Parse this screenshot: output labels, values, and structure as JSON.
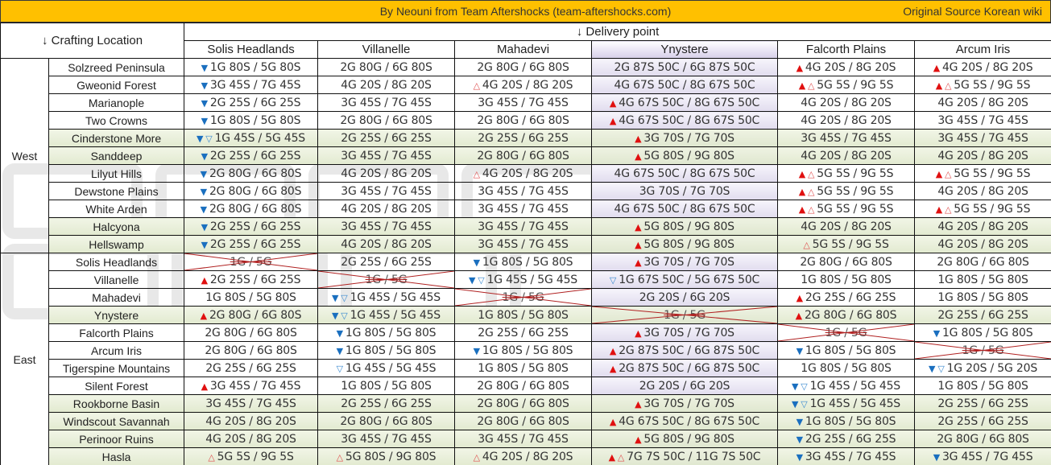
{
  "header": {
    "credit": "By Neouni from Team Aftershocks (team-aftershocks.com)",
    "source": "Original Source Korean wiki",
    "crafting_location_label": "↓ Crafting Location",
    "delivery_point_label": "↓ Delivery point"
  },
  "colors": {
    "title_bar": "#FFC000",
    "increase_marker": "#E01010",
    "decrease_marker": "#1A6FBF",
    "cross_out": "#B02020",
    "ynystere_column": "#E1DCEE",
    "highlight_rows": "#E2EAD0"
  },
  "legend_icons": {
    "filled_up": "▲",
    "outline_up": "△",
    "filled_down": "▼",
    "outline_down": "▽"
  },
  "destinations": [
    "Solis Headlands",
    "Villanelle",
    "Mahadevi",
    "Ynystere",
    "Falcorth Plains",
    "Arcum Iris"
  ],
  "regions": {
    "west": "West",
    "east": "East"
  },
  "rows": [
    {
      "region": "West",
      "location": "Solzreed Peninsula",
      "green": false,
      "cells": [
        {
          "m": "▼",
          "v": "1G 80S / 5G 80S"
        },
        {
          "m": "",
          "v": "2G 80G / 6G 80S"
        },
        {
          "m": "",
          "v": "2G 80G / 6G 80S"
        },
        {
          "m": "",
          "v": "2G 87S 50C / 6G 87S 50C"
        },
        {
          "m": "▲",
          "v": "4G 20S / 8G 20S"
        },
        {
          "m": "▲",
          "v": "4G 20S / 8G 20S"
        }
      ]
    },
    {
      "region": "West",
      "location": "Gweonid Forest",
      "green": false,
      "cells": [
        {
          "m": "▼",
          "v": "3G 45S / 7G 45S"
        },
        {
          "m": "",
          "v": "4G 20S / 8G 20S"
        },
        {
          "m": "△",
          "v": "4G 20S / 8G 20S"
        },
        {
          "m": "",
          "v": "4G 67S 50C / 8G 67S 50C"
        },
        {
          "m": "▲△",
          "v": "5G 5S / 9G 5S"
        },
        {
          "m": "▲△",
          "v": "5G 5S / 9G 5S"
        }
      ]
    },
    {
      "region": "West",
      "location": "Marianople",
      "green": false,
      "cells": [
        {
          "m": "▼",
          "v": "2G 25S / 6G 25S"
        },
        {
          "m": "",
          "v": "3G 45S / 7G 45S"
        },
        {
          "m": "",
          "v": "3G 45S / 7G 45S"
        },
        {
          "m": "▲",
          "v": "4G 67S 50C / 8G 67S 50C"
        },
        {
          "m": "",
          "v": "4G 20S / 8G 20S"
        },
        {
          "m": "",
          "v": "4G 20S / 8G 20S"
        }
      ]
    },
    {
      "region": "West",
      "location": "Two Crowns",
      "green": false,
      "cells": [
        {
          "m": "▼",
          "v": "1G 80S / 5G 80S"
        },
        {
          "m": "",
          "v": "2G 80G / 6G 80S"
        },
        {
          "m": "",
          "v": "2G 80G / 6G 80S"
        },
        {
          "m": "▲",
          "v": "4G 67S 50C / 8G 67S 50C"
        },
        {
          "m": "",
          "v": "4G 20S / 8G 20S"
        },
        {
          "m": "",
          "v": "3G 45S / 7G 45S"
        }
      ]
    },
    {
      "region": "West",
      "location": "Cinderstone More",
      "green": true,
      "cells": [
        {
          "m": "▼▽",
          "v": "1G 45S / 5G 45S"
        },
        {
          "m": "",
          "v": "2G 25S / 6G 25S"
        },
        {
          "m": "",
          "v": "2G 25S / 6G 25S"
        },
        {
          "m": "▲",
          "v": "3G 70S / 7G 70S"
        },
        {
          "m": "",
          "v": "3G 45S / 7G 45S"
        },
        {
          "m": "",
          "v": "3G 45S / 7G 45S"
        }
      ]
    },
    {
      "region": "West",
      "location": "Sanddeep",
      "green": true,
      "cells": [
        {
          "m": "▼",
          "v": "2G 25S / 6G 25S"
        },
        {
          "m": "",
          "v": "3G 45S / 7G 45S"
        },
        {
          "m": "",
          "v": "2G 80G / 6G 80S"
        },
        {
          "m": "▲",
          "v": "5G 80S / 9G 80S"
        },
        {
          "m": "",
          "v": "4G 20S / 8G 20S"
        },
        {
          "m": "",
          "v": "4G 20S / 8G 20S"
        }
      ]
    },
    {
      "region": "West",
      "location": "Lilyut Hills",
      "green": false,
      "cells": [
        {
          "m": "▼",
          "v": "2G 80G / 6G 80S"
        },
        {
          "m": "",
          "v": "4G 20S / 8G 20S"
        },
        {
          "m": "△",
          "v": "4G 20S / 8G 20S"
        },
        {
          "m": "",
          "v": "4G 67S 50C / 8G 67S 50C"
        },
        {
          "m": "▲△",
          "v": "5G 5S / 9G 5S"
        },
        {
          "m": "▲△",
          "v": "5G 5S / 9G 5S"
        }
      ]
    },
    {
      "region": "West",
      "location": "Dewstone Plains",
      "green": false,
      "cells": [
        {
          "m": "▼",
          "v": "2G 80G / 6G 80S"
        },
        {
          "m": "",
          "v": "3G 45S / 7G 45S"
        },
        {
          "m": "",
          "v": "3G 45S / 7G 45S"
        },
        {
          "m": "",
          "v": "3G 70S / 7G 70S"
        },
        {
          "m": "▲△",
          "v": "5G 5S / 9G 5S"
        },
        {
          "m": "",
          "v": "4G 20S / 8G 20S"
        }
      ]
    },
    {
      "region": "West",
      "location": "White Arden",
      "green": false,
      "cells": [
        {
          "m": "▼",
          "v": "2G 80G / 6G 80S"
        },
        {
          "m": "",
          "v": "4G 20S / 8G 20S"
        },
        {
          "m": "",
          "v": "3G 45S / 7G 45S"
        },
        {
          "m": "",
          "v": "4G 67S 50C / 8G 67S 50C"
        },
        {
          "m": "▲△",
          "v": "5G 5S / 9G 5S"
        },
        {
          "m": "▲△",
          "v": "5G 5S / 9G 5S"
        }
      ]
    },
    {
      "region": "West",
      "location": "Halcyona",
      "green": true,
      "cells": [
        {
          "m": "▼",
          "v": "2G 25S / 6G 25S"
        },
        {
          "m": "",
          "v": "3G 45S / 7G 45S"
        },
        {
          "m": "",
          "v": "3G 45S / 7G 45S"
        },
        {
          "m": "▲",
          "v": "5G 80S / 9G 80S"
        },
        {
          "m": "",
          "v": "4G 20S / 8G 20S"
        },
        {
          "m": "",
          "v": "4G 20S / 8G 20S"
        }
      ]
    },
    {
      "region": "West",
      "location": "Hellswamp",
      "green": true,
      "cells": [
        {
          "m": "▼",
          "v": "2G 25S / 6G 25S"
        },
        {
          "m": "",
          "v": "4G 20S / 8G 20S"
        },
        {
          "m": "",
          "v": "3G 45S / 7G 45S"
        },
        {
          "m": "▲",
          "v": "5G 80S / 9G 80S"
        },
        {
          "m": "△",
          "v": "5G 5S / 9G 5S"
        },
        {
          "m": "",
          "v": "4G 20S / 8G 20S"
        }
      ]
    },
    {
      "region": "East",
      "location": "Solis Headlands",
      "green": false,
      "cells": [
        {
          "m": "",
          "v": "1G / 5G",
          "x": true
        },
        {
          "m": "",
          "v": "2G 25S / 6G 25S"
        },
        {
          "m": "▼",
          "v": "1G 80S / 5G 80S"
        },
        {
          "m": "▲",
          "v": "3G 70S / 7G 70S"
        },
        {
          "m": "",
          "v": "2G 80G / 6G 80S"
        },
        {
          "m": "",
          "v": "2G 80G / 6G 80S"
        }
      ]
    },
    {
      "region": "East",
      "location": "Villanelle",
      "green": false,
      "cells": [
        {
          "m": "▲",
          "v": "2G 25S / 6G 25S"
        },
        {
          "m": "",
          "v": "1G / 5G",
          "x": true
        },
        {
          "m": "▼▽",
          "v": "1G 45S / 5G 45S"
        },
        {
          "m": "▽",
          "v": "1G 67S 50C / 5G 67S 50C"
        },
        {
          "m": "",
          "v": "1G 80S / 5G 80S"
        },
        {
          "m": "",
          "v": "1G 80S / 5G 80S"
        }
      ]
    },
    {
      "region": "East",
      "location": "Mahadevi",
      "green": false,
      "cells": [
        {
          "m": "",
          "v": "1G 80S / 5G 80S"
        },
        {
          "m": "▼▽",
          "v": "1G 45S / 5G 45S"
        },
        {
          "m": "",
          "v": "1G / 5G",
          "x": true
        },
        {
          "m": "",
          "v": "2G 20S / 6G 20S"
        },
        {
          "m": "▲",
          "v": "2G 25S / 6G 25S"
        },
        {
          "m": "",
          "v": "1G 80S / 5G 80S"
        }
      ]
    },
    {
      "region": "East",
      "location": "Ynystere",
      "green": true,
      "cells": [
        {
          "m": "▲",
          "v": "2G 80G / 6G 80S"
        },
        {
          "m": "▼▽",
          "v": "1G 45S / 5G 45S"
        },
        {
          "m": "",
          "v": "1G 80S / 5G 80S"
        },
        {
          "m": "",
          "v": "1G / 5G",
          "x": true
        },
        {
          "m": "▲",
          "v": "2G 80G / 6G 80S"
        },
        {
          "m": "",
          "v": "2G 25S / 6G 25S"
        }
      ]
    },
    {
      "region": "East",
      "location": "Falcorth Plains",
      "green": false,
      "cells": [
        {
          "m": "",
          "v": "2G 80G / 6G 80S"
        },
        {
          "m": "▼",
          "v": "1G 80S / 5G 80S"
        },
        {
          "m": "",
          "v": "2G 25S / 6G 25S"
        },
        {
          "m": "▲",
          "v": "3G 70S / 7G 70S"
        },
        {
          "m": "",
          "v": "1G / 5G",
          "x": true
        },
        {
          "m": "▼",
          "v": "1G 80S / 5G 80S"
        }
      ]
    },
    {
      "region": "East",
      "location": "Arcum Iris",
      "green": false,
      "cells": [
        {
          "m": "",
          "v": "2G 80G / 6G 80S"
        },
        {
          "m": "▼",
          "v": "1G 80S / 5G 80S"
        },
        {
          "m": "▼",
          "v": "1G 80S / 5G 80S"
        },
        {
          "m": "▲",
          "v": "2G 87S 50C / 6G 87S 50C"
        },
        {
          "m": "▼",
          "v": "1G 80S / 5G 80S"
        },
        {
          "m": "",
          "v": "1G / 5G",
          "x": true
        }
      ]
    },
    {
      "region": "East",
      "location": "Tigerspine Mountains",
      "green": false,
      "cells": [
        {
          "m": "",
          "v": "2G 25S / 6G 25S"
        },
        {
          "m": "▽",
          "v": "1G 45S / 5G 45S"
        },
        {
          "m": "",
          "v": "1G 80S / 5G 80S"
        },
        {
          "m": "▲",
          "v": "2G 87S 50C / 6G 87S 50C"
        },
        {
          "m": "",
          "v": "1G 80S / 5G 80S"
        },
        {
          "m": "▼▽",
          "v": "1G 20S / 5G 20S"
        }
      ]
    },
    {
      "region": "East",
      "location": "Silent Forest",
      "green": false,
      "cells": [
        {
          "m": "▲",
          "v": "3G 45S / 7G 45S"
        },
        {
          "m": "",
          "v": "1G 80S / 5G 80S"
        },
        {
          "m": "",
          "v": "2G 80G / 6G 80S"
        },
        {
          "m": "",
          "v": "2G 20S / 6G 20S"
        },
        {
          "m": "▼▽",
          "v": "1G 45S / 5G 45S"
        },
        {
          "m": "",
          "v": "1G 80S / 5G 80S"
        }
      ]
    },
    {
      "region": "East",
      "location": "Rookborne Basin",
      "green": true,
      "cells": [
        {
          "m": "",
          "v": "3G 45S / 7G 45S"
        },
        {
          "m": "",
          "v": "2G 25S / 6G 25S"
        },
        {
          "m": "",
          "v": "2G 80G / 6G 80S"
        },
        {
          "m": "▲",
          "v": "3G 70S / 7G 70S"
        },
        {
          "m": "▼▽",
          "v": "1G 45S / 5G 45S"
        },
        {
          "m": "",
          "v": "2G 25S / 6G 25S"
        }
      ]
    },
    {
      "region": "East",
      "location": "Windscout Savannah",
      "green": true,
      "cells": [
        {
          "m": "",
          "v": "4G 20S / 8G 20S"
        },
        {
          "m": "",
          "v": "2G 80G / 6G 80S"
        },
        {
          "m": "",
          "v": "2G 80G / 6G 80S"
        },
        {
          "m": "▲",
          "v": "4G 67S 50C / 8G 67S 50C"
        },
        {
          "m": "▼",
          "v": "1G 80S / 5G 80S"
        },
        {
          "m": "",
          "v": "2G 25S / 6G 25S"
        }
      ]
    },
    {
      "region": "East",
      "location": "Perinoor Ruins",
      "green": true,
      "cells": [
        {
          "m": "",
          "v": "4G 20S / 8G 20S"
        },
        {
          "m": "",
          "v": "3G 45S / 7G 45S"
        },
        {
          "m": "",
          "v": "3G 45S / 7G 45S"
        },
        {
          "m": "▲",
          "v": "5G 80S / 9G 80S"
        },
        {
          "m": "▼",
          "v": "2G 25S / 6G 25S"
        },
        {
          "m": "",
          "v": "2G 80G / 6G 80S"
        }
      ]
    },
    {
      "region": "East",
      "location": "Hasla",
      "green": true,
      "cells": [
        {
          "m": "△",
          "v": "5G 5S / 9G 5S"
        },
        {
          "m": "△",
          "v": "5G 80S / 9G 80S"
        },
        {
          "m": "△",
          "v": "4G 20S / 8G 20S"
        },
        {
          "m": "▲△",
          "v": "7G 7S 50C / 11G 7S 50C"
        },
        {
          "m": "▼",
          "v": "3G 45S / 7G 45S"
        },
        {
          "m": "▼",
          "v": "3G 45S / 7G 45S"
        }
      ]
    }
  ]
}
